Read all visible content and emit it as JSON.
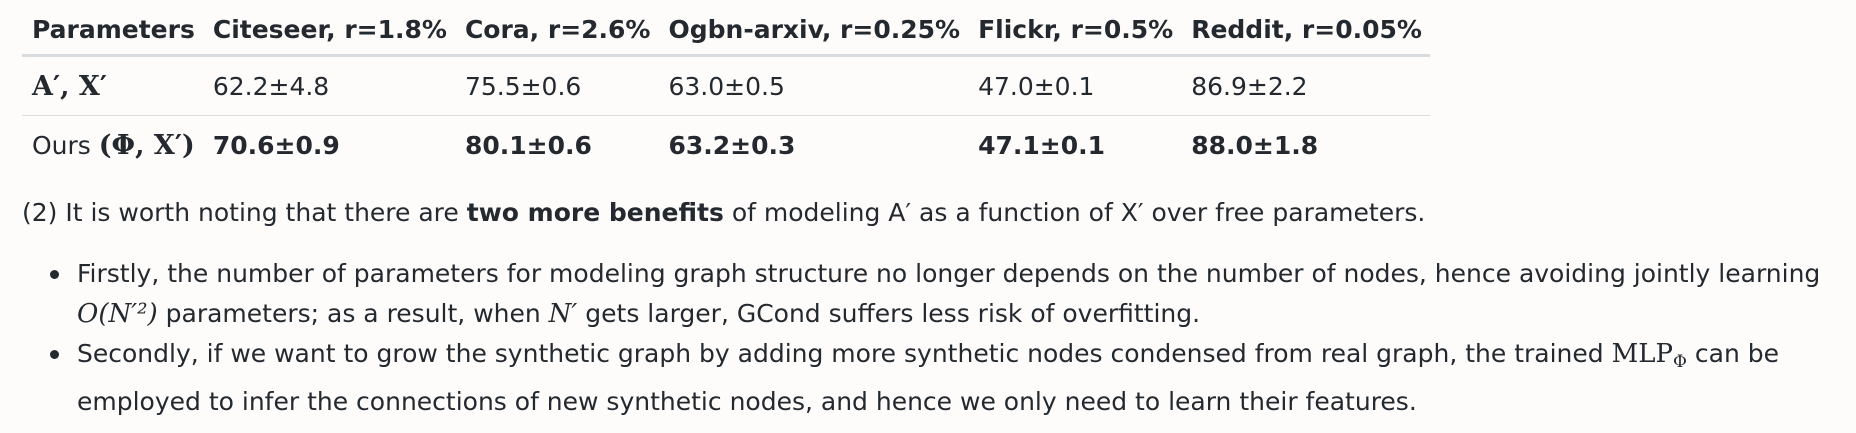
{
  "table": {
    "headers": [
      "Parameters",
      "Citeseer, r=1.8%",
      "Cora, r=2.6%",
      "Ogbn-arxiv, r=0.25%",
      "Flickr, r=0.5%",
      "Reddit, r=0.05%"
    ],
    "row_a": {
      "label_math": "A′, X′",
      "values": [
        "62.2±4.8",
        "75.5±0.6",
        "63.0±0.5",
        "47.0±0.1",
        "86.9±2.2"
      ]
    },
    "row_ours": {
      "label_text": "Ours",
      "label_math": "(Φ, X′)",
      "values": [
        "70.6±0.9",
        "80.1±0.6",
        "63.2±0.3",
        "47.1±0.1",
        "88.0±1.8"
      ]
    }
  },
  "note": {
    "prefix": "(2) It is worth noting that there are",
    "bold": "two more benefits",
    "suffix": "of modeling A′ as a function of X′ over free parameters."
  },
  "bullets": {
    "first": {
      "line1": "Firstly, the number of parameters for modeling graph structure no longer depends on the number of nodes, hence avoiding jointly learning",
      "math_complexity": "O(N′²)",
      "line2_a": "parameters; as a result, when",
      "math_n": "N′",
      "line2_b": "gets larger, GCond suffers less risk of overfitting."
    },
    "second": {
      "line1_a": "Secondly, if we want to grow the synthetic graph by adding more synthetic nodes condensed from real graph, the trained",
      "math_mlp": "MLP",
      "math_mlp_sub": "Φ",
      "line1_b": "can be",
      "line2": "employed to infer the connections of new synthetic nodes, and hence we only need to learn their features."
    }
  }
}
